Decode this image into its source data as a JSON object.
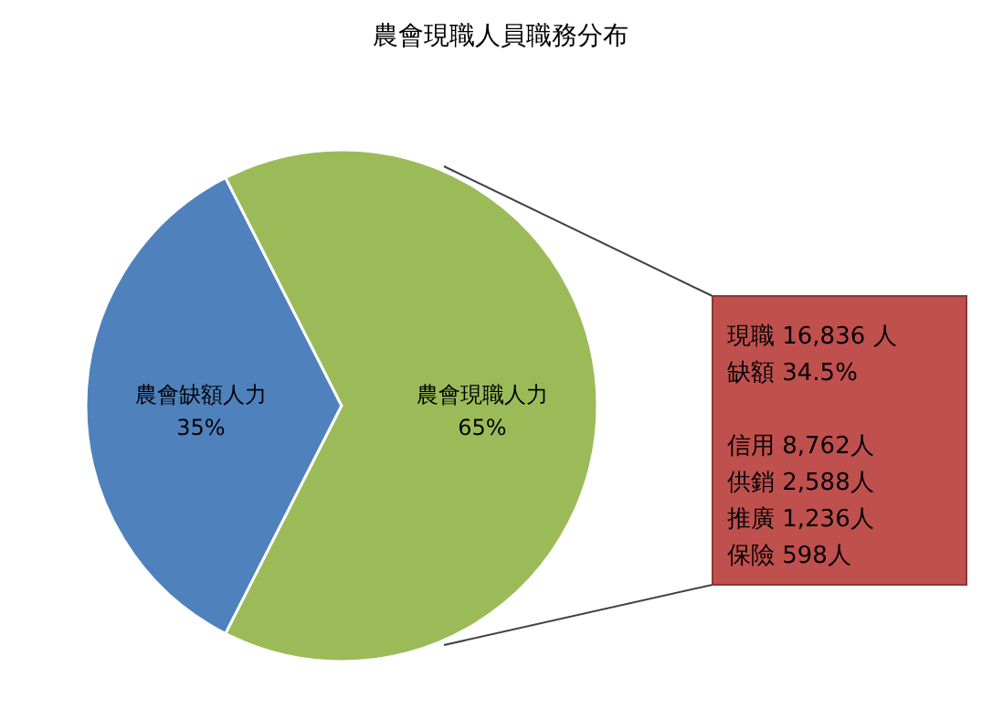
{
  "chart_data": {
    "type": "pie",
    "title": "農會現職人員職務分布",
    "categories": [
      "農會缺額人力",
      "農會現職人力"
    ],
    "values": [
      35,
      65
    ],
    "colors": [
      "#4f81bd",
      "#9bbb59"
    ],
    "value_labels": [
      "35%",
      "65%"
    ],
    "annotations": [
      "現職 16,836 人",
      "缺額  34.5%",
      "信用  8,762人",
      "供銷  2,588人",
      "推廣  1,236人",
      "保險     598人"
    ]
  }
}
